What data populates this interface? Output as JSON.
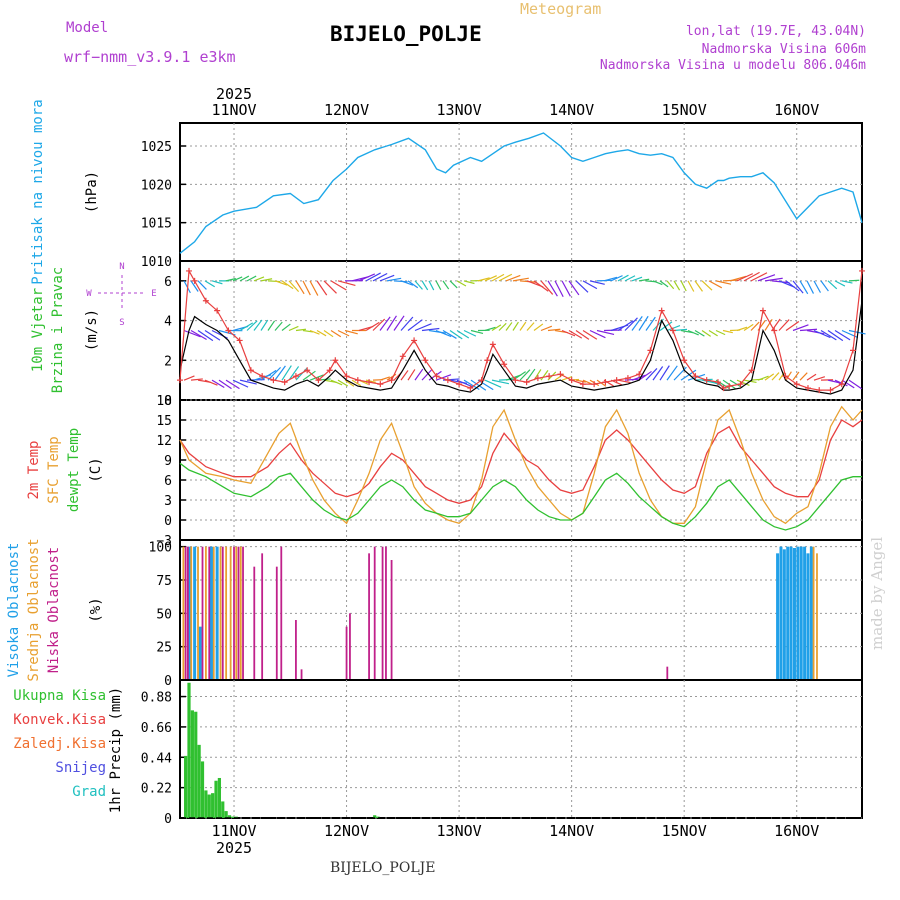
{
  "header": {
    "model_label": "Model",
    "model": "wrf−nmm_v3.9.1 e3km",
    "title": "BIJELO_POLJE",
    "meteogram": "Meteogram",
    "lonlat": "lon,lat (19.7E, 43.04N)",
    "elevation": "Nadmorska Visina 606m",
    "model_elevation": "Nadmorska Visina u modelu 806.046m"
  },
  "footer": {
    "station": "BIJELO_POLJE",
    "watermark": "made by Angel"
  },
  "colors": {
    "pressure": "#1ea8e8",
    "wind_speed": "#000000",
    "gust": "#e84040",
    "t2m": "#e84040",
    "sfc": "#e8a030",
    "dewpt": "#30c030",
    "high_cloud": "#20a0e8",
    "mid_cloud": "#e8a030",
    "low_cloud": "#c0208a",
    "precip": "#30c030",
    "convective": "#e84040",
    "frozen": "#f07030",
    "snow": "#5050e0",
    "graupel": "#20c0c0",
    "purple": "#b040d0"
  },
  "chart_data": [
    {
      "id": "pressure",
      "type": "line",
      "title": "Pritisak na nivou mora",
      "ylabel": "(hPa)",
      "ylim": [
        1010,
        1028
      ],
      "yticks": [
        "1010",
        "1015",
        "1020",
        "1025"
      ],
      "xlim": [
        -0.48,
        5.58
      ],
      "xtick_positions": [
        0,
        1,
        2,
        3,
        4,
        5
      ],
      "xtick_labels": [
        "11NOV",
        "12NOV",
        "13NOV",
        "14NOV",
        "15NOV",
        "16NOV"
      ],
      "year_label": "2025",
      "x": [
        -0.48,
        -0.35,
        -0.25,
        -0.1,
        0,
        0.2,
        0.35,
        0.5,
        0.62,
        0.75,
        0.88,
        1,
        1.1,
        1.25,
        1.4,
        1.55,
        1.7,
        1.8,
        1.88,
        1.95,
        2.1,
        2.2,
        2.3,
        2.4,
        2.5,
        2.62,
        2.75,
        2.9,
        3,
        3.1,
        3.2,
        3.3,
        3.4,
        3.5,
        3.6,
        3.7,
        3.8,
        3.9,
        4,
        4.1,
        4.2,
        4.3,
        4.35,
        4.4,
        4.5,
        4.6,
        4.7,
        4.8,
        5,
        5.1,
        5.2,
        5.3,
        5.4,
        5.5,
        5.58
      ],
      "series": [
        {
          "name": "pressure",
          "values": [
            1011,
            1012.5,
            1014.5,
            1016,
            1016.5,
            1017,
            1018.5,
            1018.8,
            1017.5,
            1018,
            1020.5,
            1022,
            1023.5,
            1024.5,
            1025.2,
            1026,
            1024.5,
            1022,
            1021.5,
            1022.5,
            1023.5,
            1023,
            1024,
            1025,
            1025.5,
            1026,
            1026.7,
            1025,
            1023.5,
            1023,
            1023.5,
            1024,
            1024.3,
            1024.5,
            1024,
            1023.8,
            1024,
            1023.5,
            1021.5,
            1020,
            1019.5,
            1020.5,
            1020.5,
            1020.8,
            1021,
            1021,
            1021.5,
            1020.2,
            1015.5,
            1017,
            1018.5,
            1019,
            1019.5,
            1019,
            1015
          ]
        }
      ]
    },
    {
      "id": "wind",
      "type": "line",
      "title": "10m Vjetar",
      "subtitle": "Brzina i Pravac",
      "ylabel": "(m/s)",
      "ylim": [
        0,
        7
      ],
      "yticks": [
        "0",
        "2",
        "4",
        "6"
      ],
      "compass_labels": [
        "N",
        "E",
        "S",
        "W"
      ],
      "x": [
        -0.48,
        -0.4,
        -0.35,
        -0.25,
        -0.15,
        -0.05,
        0.05,
        0.15,
        0.25,
        0.35,
        0.45,
        0.55,
        0.65,
        0.75,
        0.85,
        0.9,
        1,
        1.1,
        1.2,
        1.3,
        1.4,
        1.5,
        1.6,
        1.7,
        1.8,
        1.9,
        2,
        2.1,
        2.2,
        2.25,
        2.3,
        2.4,
        2.5,
        2.6,
        2.7,
        2.8,
        2.9,
        3,
        3.1,
        3.2,
        3.3,
        3.4,
        3.5,
        3.6,
        3.7,
        3.8,
        3.9,
        4,
        4.1,
        4.2,
        4.3,
        4.35,
        4.4,
        4.5,
        4.6,
        4.7,
        4.8,
        4.9,
        5,
        5.1,
        5.2,
        5.3,
        5.4,
        5.5,
        5.58
      ],
      "series": [
        {
          "name": "speed",
          "values": [
            1.5,
            3.5,
            4.2,
            3.8,
            3.5,
            3,
            2,
            1,
            0.8,
            0.6,
            0.5,
            0.8,
            1,
            0.7,
            1.2,
            1.5,
            1,
            0.7,
            0.6,
            0.5,
            0.6,
            1.5,
            2.5,
            1.5,
            0.8,
            0.7,
            0.5,
            0.4,
            0.8,
            1.5,
            2.3,
            1.5,
            0.7,
            0.6,
            0.8,
            0.9,
            1,
            0.7,
            0.6,
            0.5,
            0.6,
            0.7,
            0.8,
            1,
            2,
            4,
            3,
            1.5,
            1,
            0.8,
            0.7,
            0.5,
            0.5,
            0.6,
            1,
            3.5,
            2.5,
            1,
            0.6,
            0.5,
            0.4,
            0.3,
            0.5,
            1.5,
            5
          ]
        },
        {
          "name": "gust",
          "values": [
            1,
            6.5,
            6,
            5,
            4.5,
            3.5,
            3,
            1.5,
            1.2,
            1,
            0.9,
            1.2,
            1.5,
            1,
            1.5,
            2,
            1.2,
            1,
            0.9,
            0.8,
            1,
            2.2,
            3,
            2,
            1.2,
            1,
            0.8,
            0.6,
            1,
            2,
            2.8,
            1.8,
            1,
            0.9,
            1.1,
            1.2,
            1.3,
            1,
            0.8,
            0.8,
            0.9,
            1,
            1.1,
            1.3,
            2.5,
            4.5,
            3.5,
            2,
            1.2,
            1,
            0.9,
            0.6,
            0.7,
            0.8,
            1.5,
            4.5,
            3.5,
            1.2,
            0.8,
            0.6,
            0.5,
            0.5,
            0.8,
            2.5,
            6.5
          ]
        }
      ],
      "vector_rows": [
        1,
        3.5,
        6
      ]
    },
    {
      "id": "temperature",
      "type": "line",
      "title": "2m Temp",
      "subtitle": "SFC Temp",
      "subtitle2": "dewpt Temp",
      "ylabel": "(C)",
      "ylim": [
        -3,
        18
      ],
      "yticks": [
        "−3",
        "0",
        "3",
        "6",
        "9",
        "12",
        "15",
        "18"
      ],
      "x": [
        -0.48,
        -0.4,
        -0.25,
        -0.1,
        0,
        0.15,
        0.3,
        0.4,
        0.5,
        0.6,
        0.7,
        0.8,
        0.9,
        1,
        1.1,
        1.2,
        1.3,
        1.4,
        1.5,
        1.6,
        1.7,
        1.8,
        1.9,
        2,
        2.1,
        2.2,
        2.3,
        2.4,
        2.5,
        2.6,
        2.7,
        2.8,
        2.9,
        3,
        3.1,
        3.2,
        3.3,
        3.4,
        3.5,
        3.6,
        3.7,
        3.8,
        3.9,
        4,
        4.1,
        4.2,
        4.3,
        4.4,
        4.5,
        4.6,
        4.7,
        4.8,
        4.9,
        5,
        5.1,
        5.2,
        5.3,
        5.4,
        5.5,
        5.58
      ],
      "series": [
        {
          "name": "t2m",
          "values": [
            12,
            10,
            8,
            7,
            6.5,
            6.5,
            8,
            10,
            11.5,
            9,
            7,
            5.5,
            4,
            3.5,
            4,
            5.5,
            8,
            10,
            9,
            7,
            5,
            4,
            3,
            2.5,
            3,
            5,
            10,
            13,
            11,
            9,
            8,
            6,
            4.5,
            4,
            4.5,
            8,
            12,
            13.5,
            12,
            10,
            8,
            6,
            4.5,
            4,
            5,
            10,
            13,
            14,
            11,
            9,
            7,
            5,
            4,
            3.5,
            3.5,
            6,
            12,
            15,
            14,
            15
          ]
        },
        {
          "name": "sfc",
          "values": [
            12,
            9,
            7,
            6.5,
            6,
            5.5,
            10,
            13,
            14.5,
            10,
            6,
            3,
            1,
            -0.5,
            3,
            7,
            12,
            14.5,
            10,
            5,
            2.5,
            1,
            0,
            -0.5,
            1,
            6,
            14,
            16.5,
            12,
            8,
            5,
            3,
            1,
            0,
            1,
            7,
            14,
            16.5,
            13,
            7,
            3,
            0.5,
            -0.5,
            -0.5,
            2,
            9,
            15,
            16.5,
            12,
            7,
            3,
            0.5,
            -0.5,
            1,
            2,
            7,
            14,
            17,
            15,
            16.5
          ]
        },
        {
          "name": "dewpt",
          "values": [
            8.5,
            7.5,
            6.5,
            5,
            4,
            3.5,
            5,
            6.5,
            7,
            5,
            3,
            1.5,
            0.5,
            0,
            1,
            3,
            5,
            6,
            5,
            3,
            1.5,
            1,
            0.5,
            0.5,
            1,
            3,
            5,
            6,
            5,
            3,
            1.5,
            0.5,
            0,
            0,
            1,
            3.5,
            6,
            7,
            5.5,
            3.5,
            2,
            0.5,
            -0.5,
            -1,
            0.5,
            2.5,
            5,
            6,
            4,
            2,
            0,
            -1,
            -1.5,
            -1,
            0,
            2,
            4,
            6,
            6.5,
            6.5
          ]
        }
      ]
    },
    {
      "id": "cloud",
      "type": "bar",
      "title": "Visoka Oblacnost",
      "subtitle": "Srednja Oblacnost",
      "subtitle2": "Niska Oblacnost",
      "ylabel": "(%)",
      "ylim": [
        0,
        105
      ],
      "yticks": [
        "0",
        "25",
        "50",
        "75",
        "100"
      ],
      "series": [
        {
          "name": "high",
          "x": [
            -0.4,
            -0.35,
            -0.3,
            -0.2,
            -0.15,
            4.83,
            4.86,
            4.89,
            4.92,
            4.95,
            4.98,
            5.01,
            5.04,
            5.07,
            5.1,
            5.13
          ],
          "values": [
            100,
            100,
            40,
            100,
            100,
            95,
            100,
            98,
            100,
            100,
            99,
            100,
            100,
            100,
            95,
            100
          ]
        },
        {
          "name": "mid",
          "x": [
            -0.45,
            -0.38,
            -0.32,
            -0.25,
            -0.18,
            -0.12,
            -0.07,
            -0.03,
            0.02,
            0.06,
            5.15,
            5.18
          ],
          "values": [
            100,
            100,
            100,
            100,
            100,
            100,
            100,
            100,
            100,
            100,
            100,
            95
          ]
        },
        {
          "name": "low",
          "x": [
            -0.43,
            -0.41,
            -0.28,
            -0.22,
            -0.1,
            0.0,
            0.04,
            0.08,
            0.18,
            0.25,
            0.38,
            0.42,
            0.55,
            0.6,
            1.0,
            1.03,
            1.2,
            1.25,
            1.32,
            1.35,
            1.4,
            3.85
          ],
          "values": [
            100,
            100,
            100,
            100,
            100,
            100,
            100,
            100,
            85,
            95,
            85,
            100,
            45,
            8,
            40,
            50,
            95,
            100,
            100,
            100,
            90,
            10
          ]
        }
      ]
    },
    {
      "id": "precip",
      "type": "bar",
      "title": "1hr Precip",
      "ylabel": "(mm)",
      "legend": [
        "Ukupna Kisa",
        "Konvek.Kisa",
        "Zaledj.Kisa",
        "Snijeg",
        "Grad"
      ],
      "ylim": [
        0,
        1.0
      ],
      "yticks": [
        "0",
        "0.22",
        "0.44",
        "0.66",
        "0.88"
      ],
      "x": [
        -0.43,
        -0.4,
        -0.37,
        -0.34,
        -0.31,
        -0.28,
        -0.25,
        -0.22,
        -0.19,
        -0.16,
        -0.13,
        -0.1,
        -0.07,
        -0.04,
        -0.01,
        0.02,
        1.25,
        1.28
      ],
      "values": [
        0.45,
        0.98,
        0.78,
        0.77,
        0.53,
        0.41,
        0.2,
        0.17,
        0.18,
        0.27,
        0.29,
        0.12,
        0.05,
        0.02,
        0.01,
        0.01,
        0.02,
        0.01
      ]
    }
  ]
}
